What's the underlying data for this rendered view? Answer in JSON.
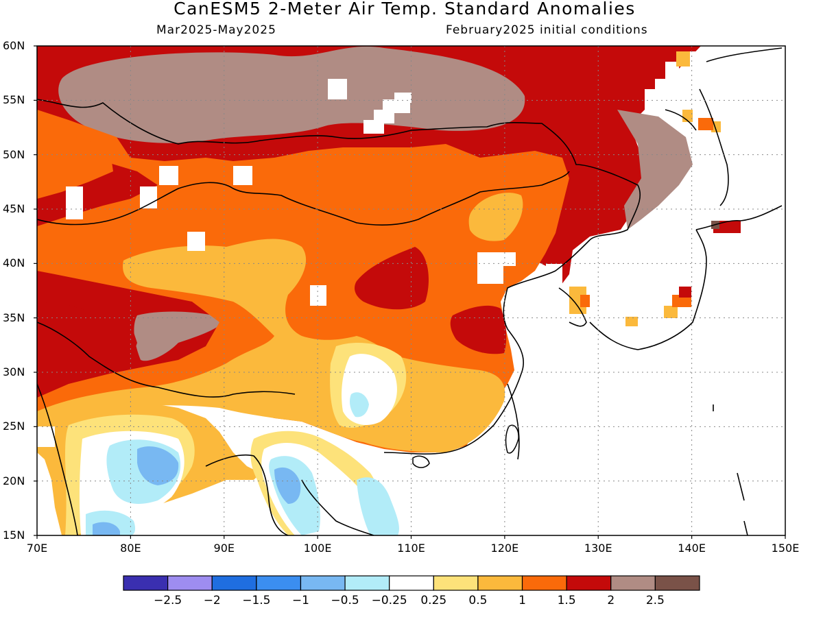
{
  "header": {
    "title": "CanESM5 2-Meter Air Temp. Standard Anomalies",
    "period": "Mar2025-May2025",
    "init": "February2025 initial conditions"
  },
  "axes": {
    "lat_labels": [
      "60N",
      "55N",
      "50N",
      "45N",
      "40N",
      "35N",
      "30N",
      "25N",
      "20N",
      "15N"
    ],
    "lon_labels": [
      "70E",
      "80E",
      "90E",
      "100E",
      "110E",
      "120E",
      "130E",
      "140E",
      "150E"
    ]
  },
  "colorbar": {
    "colors": [
      "#3a2fb0",
      "#9e8df0",
      "#1f6ee0",
      "#3b8ef0",
      "#78b8f2",
      "#b2ecf8",
      "#ffffff",
      "#fde27a",
      "#fbb93c",
      "#fa6a0a",
      "#c40a0a",
      "#b08c84",
      "#7a5248"
    ],
    "labels": [
      "-2.5",
      "-2",
      "-1.5",
      "-1",
      "-0.5",
      "-0.25",
      "0.25",
      "0.5",
      "1",
      "1.5",
      "2",
      "2.5"
    ]
  },
  "map": {
    "lon_range": [
      70,
      150
    ],
    "lat_range": [
      15,
      60
    ],
    "grid": "dotted",
    "land_color": "#ffffff",
    "contour_levels_colors": {
      "anom_gt_2": "#b08c84",
      "anom_1p5_2": "#c40a0a",
      "anom_1_1p5": "#fa6a0a",
      "anom_0p5_1": "#fbb93c",
      "anom_0p25_0p5": "#fde27a",
      "anom_neutral": "#ffffff",
      "anom_m0p5": "#b2ecf8",
      "anom_m1": "#78b8f2",
      "anom_m1p5": "#3b8ef0"
    }
  }
}
